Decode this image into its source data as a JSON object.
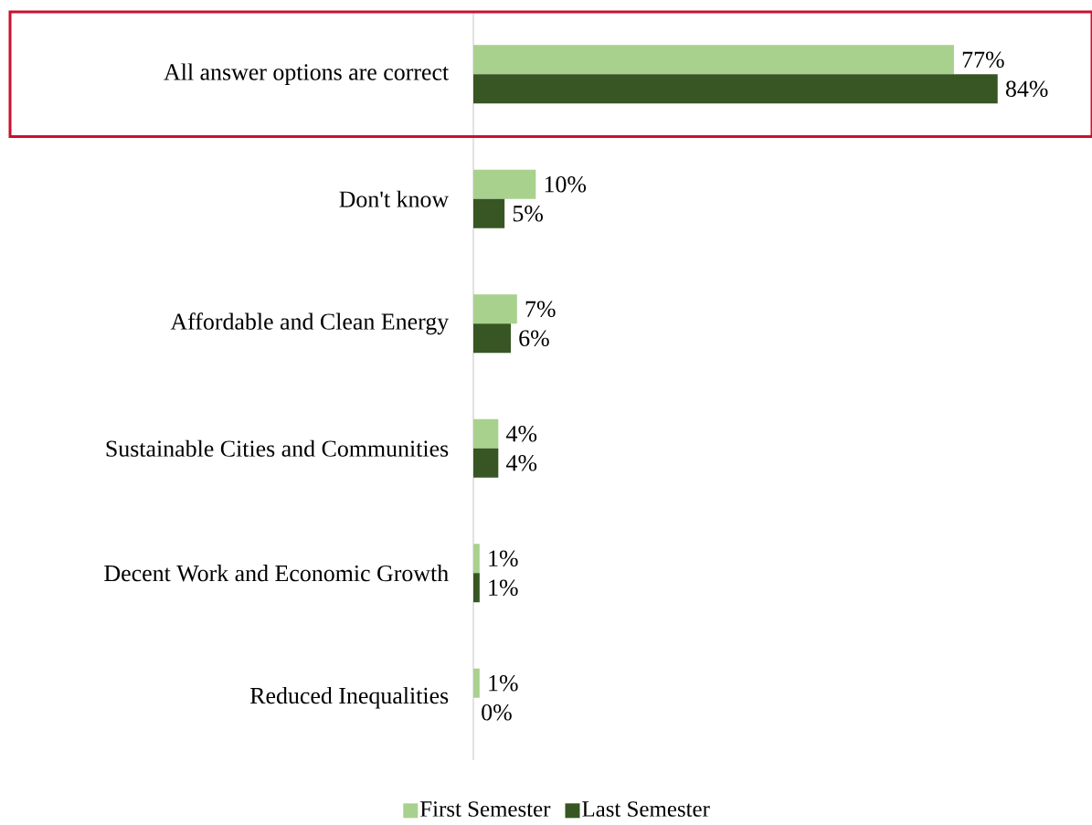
{
  "chart_data": {
    "type": "bar",
    "orientation": "horizontal",
    "categories": [
      "All answer options are correct",
      "Don't know",
      "Affordable and Clean Energy",
      "Sustainable Cities and Communities",
      "Decent Work and Economic Growth",
      "Reduced Inequalities"
    ],
    "series": [
      {
        "name": "First Semester",
        "color": "#a9d18e",
        "values": [
          77,
          10,
          7,
          4,
          1,
          1
        ],
        "value_labels": [
          "77%",
          "10%",
          "7%",
          "4%",
          "1%",
          "1%"
        ]
      },
      {
        "name": "Last Semester",
        "color": "#375623",
        "values": [
          84,
          5,
          6,
          4,
          1,
          0
        ],
        "value_labels": [
          "84%",
          "5%",
          "6%",
          "4%",
          "1%",
          "0%"
        ]
      }
    ],
    "legend": "bottom"
  }
}
